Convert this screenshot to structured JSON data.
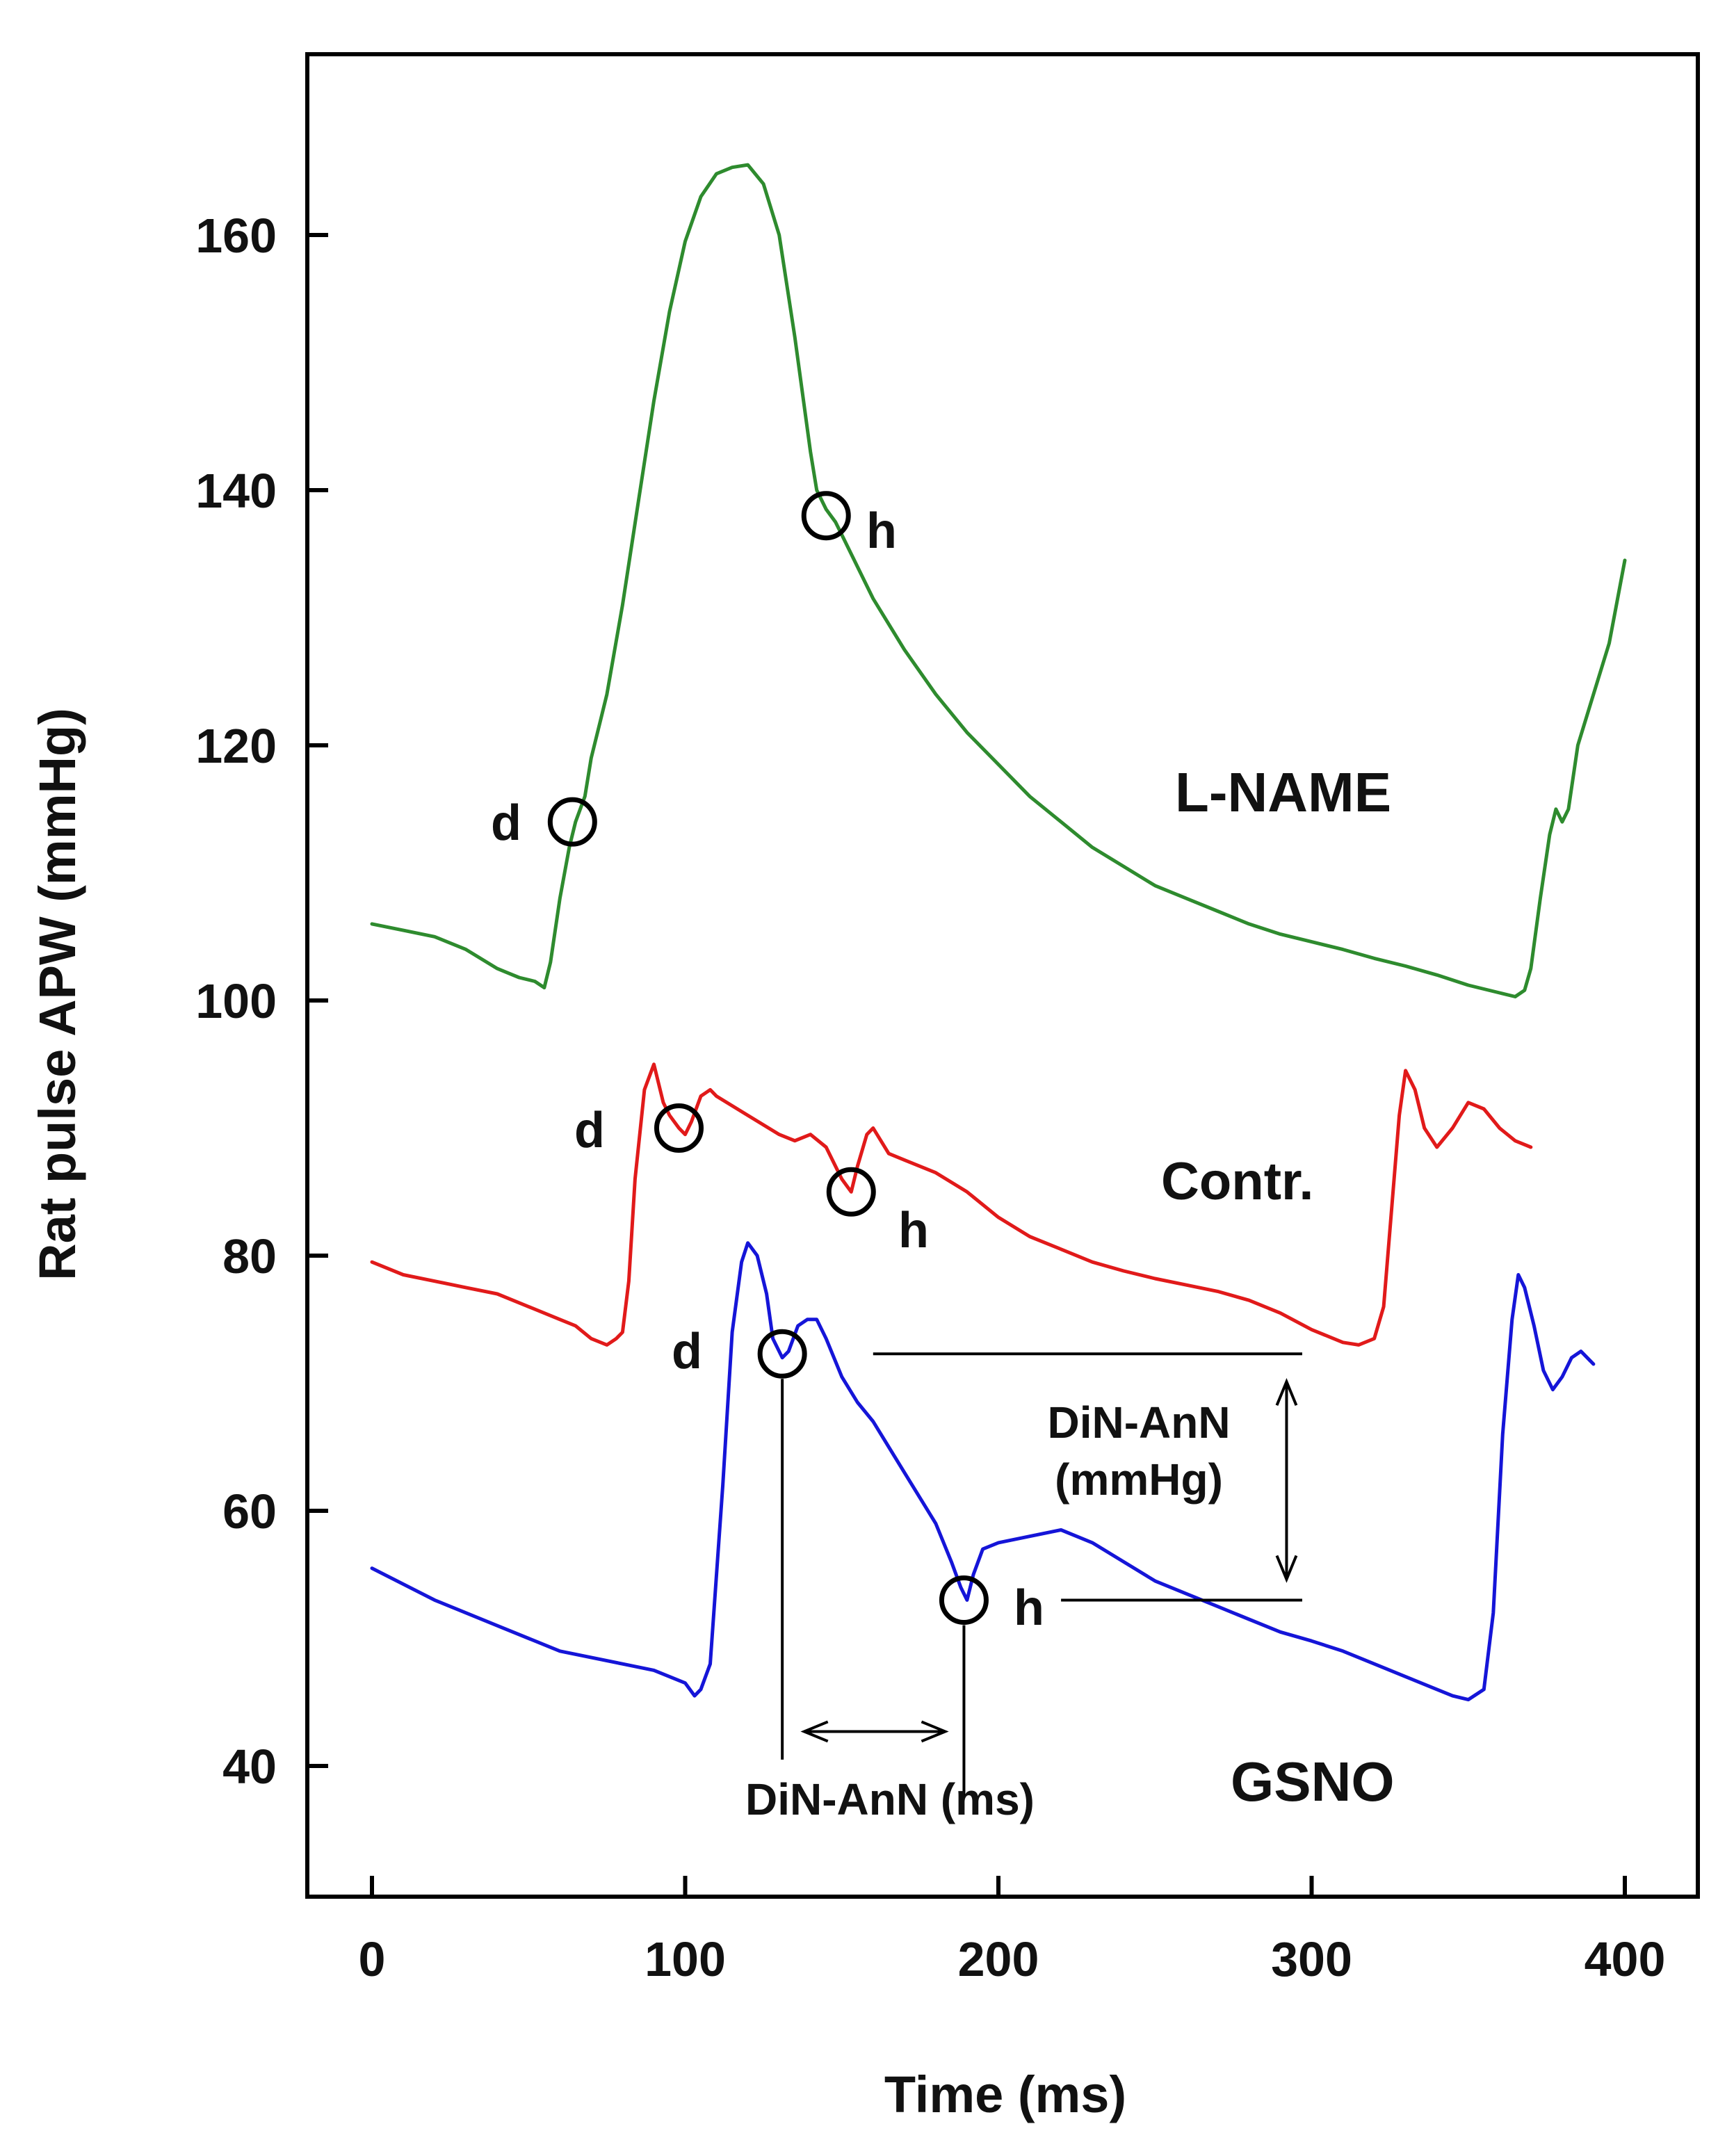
{
  "chart_data": {
    "type": "line",
    "title": "",
    "xlabel": "Time (ms)",
    "ylabel": "Rat pulse APW (mmHg)",
    "xlim": [
      -20,
      410
    ],
    "ylim": [
      30,
      180
    ],
    "xticks": [
      0,
      100,
      200,
      300,
      400
    ],
    "yticks": [
      40,
      60,
      80,
      100,
      120,
      140,
      160
    ],
    "grid": false,
    "series": [
      {
        "name": "L-NAME",
        "color": "#2e8b2e",
        "x": [
          0,
          10,
          20,
          30,
          40,
          47,
          52,
          55,
          57,
          60,
          63,
          65,
          68,
          70,
          73,
          75,
          80,
          85,
          90,
          95,
          100,
          105,
          110,
          115,
          120,
          125,
          130,
          135,
          140,
          142,
          145,
          148,
          150,
          155,
          160,
          170,
          180,
          190,
          200,
          210,
          220,
          230,
          240,
          250,
          260,
          270,
          280,
          290,
          300,
          310,
          320,
          330,
          340,
          350,
          360,
          365,
          368,
          370,
          373,
          376,
          378,
          380,
          382,
          385,
          390,
          395,
          400
        ],
        "y": [
          106,
          105.5,
          105,
          104,
          102.5,
          101.8,
          101.5,
          101,
          103,
          108,
          112,
          114,
          116,
          119,
          122,
          124,
          131,
          139,
          147,
          154,
          159.5,
          163,
          164.8,
          165.3,
          165.5,
          164,
          160,
          152,
          143,
          140,
          138.5,
          137.5,
          136.5,
          134,
          131.5,
          127.5,
          124,
          121,
          118.5,
          116,
          114,
          112,
          110.5,
          109,
          108,
          107,
          106,
          105.2,
          104.6,
          104,
          103.3,
          102.7,
          102,
          101.2,
          100.6,
          100.3,
          100.8,
          102.5,
          108,
          113,
          115,
          114,
          115,
          120,
          124,
          128,
          134.5
        ]
      },
      {
        "name": "Contr.",
        "color": "#e11a1a",
        "x": [
          0,
          10,
          20,
          30,
          40,
          50,
          60,
          65,
          70,
          75,
          78,
          80,
          82,
          84,
          87,
          90,
          93,
          95,
          98,
          100,
          102,
          105,
          108,
          110,
          120,
          130,
          135,
          140,
          145,
          150,
          153,
          155,
          158,
          160,
          165,
          170,
          180,
          190,
          200,
          210,
          220,
          230,
          240,
          250,
          260,
          270,
          280,
          290,
          300,
          310,
          315,
          320,
          323,
          326,
          328,
          330,
          333,
          336,
          340,
          345,
          350,
          355,
          360,
          365,
          370
        ],
        "y": [
          79.5,
          78.5,
          78,
          77.5,
          77,
          76,
          75,
          74.5,
          73.5,
          73,
          73.5,
          74,
          78,
          86,
          93,
          95,
          92,
          91,
          90,
          89.5,
          90.5,
          92.5,
          93,
          92.5,
          91,
          89.5,
          89,
          89.5,
          88.5,
          86,
          85,
          87,
          89.5,
          90,
          88,
          87.5,
          86.5,
          85,
          83,
          81.5,
          80.5,
          79.5,
          78.8,
          78.2,
          77.7,
          77.2,
          76.5,
          75.5,
          74.2,
          73.2,
          73,
          73.5,
          76,
          85,
          91,
          94.5,
          93,
          90,
          88.5,
          90,
          92,
          91.5,
          90,
          89,
          88.5
        ]
      },
      {
        "name": "GSNO",
        "color": "#1515d8",
        "x": [
          0,
          20,
          40,
          60,
          80,
          90,
          100,
          103,
          105,
          108,
          112,
          115,
          118,
          120,
          123,
          126,
          128,
          131,
          133,
          136,
          139,
          142,
          145,
          150,
          155,
          160,
          170,
          180,
          185,
          188,
          190,
          192,
          195,
          200,
          210,
          220,
          230,
          240,
          250,
          260,
          270,
          280,
          290,
          300,
          310,
          320,
          330,
          340,
          345,
          350,
          355,
          358,
          361,
          364,
          366,
          368,
          371,
          374,
          377,
          380,
          383,
          386,
          390
        ],
        "y": [
          55.5,
          53,
          51,
          49,
          48,
          47.5,
          46.5,
          45.5,
          46,
          48,
          62,
          74,
          79.5,
          81,
          80,
          77,
          73.5,
          72,
          72.5,
          74.5,
          75,
          75,
          73.5,
          70.5,
          68.5,
          67,
          63,
          59,
          56,
          54,
          53,
          55,
          57,
          57.5,
          58,
          58.5,
          57.5,
          56,
          54.5,
          53.5,
          52.5,
          51.5,
          50.5,
          49.8,
          49,
          48,
          47,
          46,
          45.5,
          45.2,
          46,
          52,
          66,
          75,
          78.5,
          77.5,
          74.5,
          71,
          69.5,
          70.5,
          72,
          72.5,
          71.5
        ]
      }
    ],
    "labels": {
      "lname": "L-NAME",
      "contr": "Contr.",
      "gsno": "GSNO",
      "d": "d",
      "h": "h",
      "din_mmhg_line1": "DiN-AnN",
      "din_mmhg_line2": "(mmHg)",
      "din_ms": "DiN-AnN (ms)"
    },
    "annotations": {
      "lname_d": [
        64,
        114
      ],
      "lname_h": [
        145,
        138
      ],
      "contr_d": [
        98,
        90
      ],
      "contr_h": [
        153,
        85
      ],
      "gsno_d": [
        131,
        72.3
      ],
      "gsno_h": [
        189,
        53
      ],
      "mmhg_top_y": 72.3,
      "mmhg_bottom_y": 53
    }
  }
}
